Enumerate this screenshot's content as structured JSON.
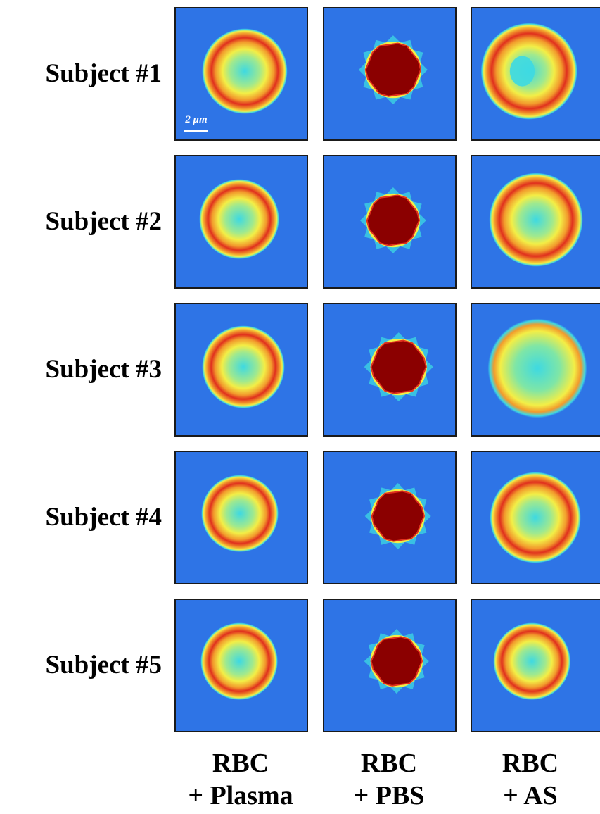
{
  "row_labels": [
    "Subject #1",
    "Subject #2",
    "Subject #3",
    "Subject #4",
    "Subject #5"
  ],
  "column_labels": [
    {
      "line1": "RBC",
      "line2": "+ Plasma"
    },
    {
      "line1": "RBC",
      "line2": "+ PBS"
    },
    {
      "line1": "RBC",
      "line2": "+ AS"
    }
  ],
  "scale_bar": "2 μm",
  "colormap": {
    "background": "#2e74e6",
    "cyan": "#3ed9e2",
    "yellow": "#f3ee46",
    "orange": "#f29a2c",
    "red": "#e0301e",
    "dark_red": "#8b0000"
  }
}
